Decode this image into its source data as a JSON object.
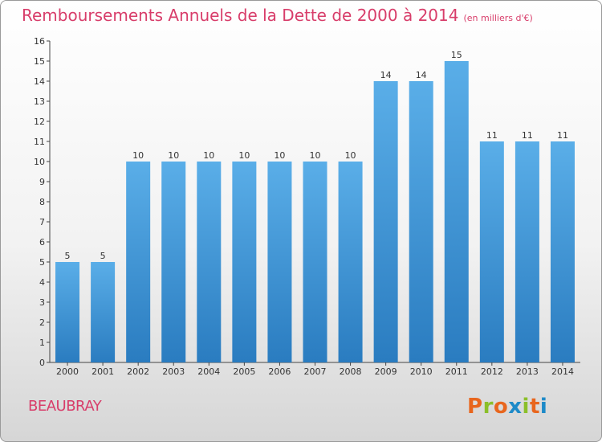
{
  "header": {
    "title": "Remboursements Annuels de la Dette de 2000 à 2014",
    "unit_note": "(en milliers d'€)"
  },
  "footer": {
    "commune": "BEAUBRAY",
    "logo_text": "Proxiti",
    "logo_colors": [
      "#e8661e",
      "#8bbf2a",
      "#e8661e",
      "#1d8ac8",
      "#8bbf2a",
      "#e8661e",
      "#1d8ac8"
    ]
  },
  "colors": {
    "title": "#d83d6a",
    "bar_light": "#5aaee8",
    "bar_dark": "#2a7cc0"
  },
  "chart_data": {
    "type": "bar",
    "title": "Remboursements Annuels de la Dette de 2000 à 2014",
    "subtitle": "(en milliers d'€)",
    "categories": [
      "2000",
      "2001",
      "2002",
      "2003",
      "2004",
      "2005",
      "2006",
      "2007",
      "2008",
      "2009",
      "2010",
      "2011",
      "2012",
      "2013",
      "2014"
    ],
    "values": [
      5,
      5,
      10,
      10,
      10,
      10,
      10,
      10,
      10,
      14,
      14,
      15,
      11,
      11,
      11
    ],
    "ylim": [
      0,
      16
    ],
    "yticks": [
      0,
      1,
      2,
      3,
      4,
      5,
      6,
      7,
      8,
      9,
      10,
      11,
      12,
      13,
      14,
      15,
      16
    ],
    "grid": false,
    "data_labels": true
  }
}
